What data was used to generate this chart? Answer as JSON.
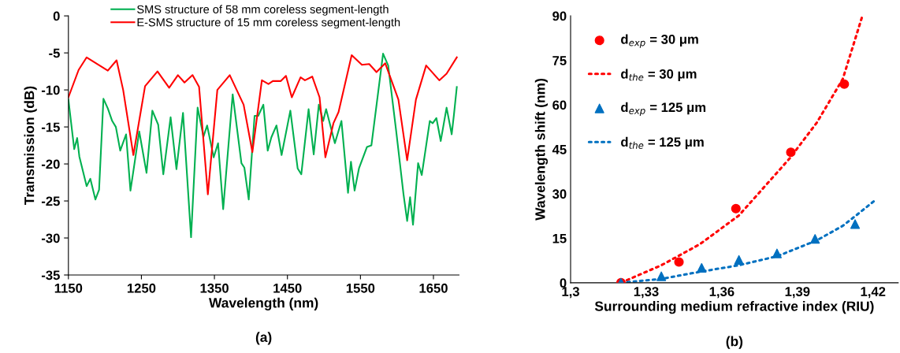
{
  "chart_data": [
    {
      "type": "line",
      "xlabel": "Wavelength (nm)",
      "ylabel": "Transmission (dB)",
      "xlim": [
        1150,
        1685
      ],
      "xticks": [
        1150,
        1250,
        1350,
        1450,
        1550,
        1650
      ],
      "ylim": [
        -35,
        0
      ],
      "yticks": [
        -35,
        -30,
        -25,
        -20,
        -15,
        -10,
        -5,
        0
      ],
      "grid": false,
      "legend": "top",
      "annotations": [
        "(a)"
      ],
      "series": [
        {
          "name": "SMS structure of 58 mm coreless segment-length",
          "color": "#00b050",
          "x": [
            1150,
            1155,
            1158,
            1162,
            1165,
            1170,
            1175,
            1180,
            1187,
            1192,
            1198,
            1204,
            1210,
            1215,
            1221,
            1229,
            1235,
            1240,
            1247,
            1257,
            1265,
            1273,
            1280,
            1290,
            1298,
            1307,
            1318,
            1327,
            1335,
            1340,
            1349,
            1355,
            1362,
            1375,
            1387,
            1391,
            1397,
            1405,
            1410,
            1417,
            1423,
            1428,
            1435,
            1442,
            1454,
            1464,
            1469,
            1479,
            1486,
            1493,
            1499,
            1503,
            1515,
            1524,
            1533,
            1537,
            1542,
            1548,
            1559,
            1565,
            1581,
            1588,
            1599,
            1609,
            1614,
            1618,
            1622,
            1629,
            1634,
            1645,
            1649,
            1654,
            1660,
            1668,
            1675,
            1678,
            1682
          ],
          "values": [
            -11.3,
            -15.5,
            -18,
            -16.5,
            -19,
            -21,
            -23,
            -22,
            -24.8,
            -23.5,
            -11.2,
            -12.5,
            -14.2,
            -15,
            -18.2,
            -16,
            -23.6,
            -20.3,
            -15.6,
            -21.2,
            -12.8,
            -14.7,
            -21.4,
            -13.7,
            -20.7,
            -13.1,
            -29.9,
            -12.4,
            -16.3,
            -14.8,
            -19.1,
            -17.2,
            -26.1,
            -10.6,
            -19.9,
            -20.5,
            -24.8,
            -13.5,
            -13.5,
            -12,
            -18.2,
            -16.4,
            -14.8,
            -18.8,
            -12.8,
            -20.6,
            -21.4,
            -12.6,
            -18.7,
            -12,
            -14.2,
            -12.6,
            -17.2,
            -14.2,
            -23.9,
            -19.7,
            -23.6,
            -20.6,
            -17.7,
            -17.5,
            -5.1,
            -6.7,
            -15.6,
            -24.1,
            -27.7,
            -24.5,
            -28.2,
            -19.9,
            -21.5,
            -14.2,
            -14.5,
            -13.8,
            -16.9,
            -12.4,
            -16,
            -13.4,
            -9.6
          ]
        },
        {
          "name": "E-SMS structure of 15 mm coreless segment-length",
          "color": "#ff0000",
          "x": [
            1150,
            1164,
            1175,
            1204,
            1216,
            1225,
            1239,
            1255,
            1272,
            1288,
            1300,
            1309,
            1320,
            1329,
            1341,
            1354,
            1371,
            1390,
            1402,
            1415,
            1424,
            1430,
            1441,
            1448,
            1456,
            1468,
            1474,
            1484,
            1494,
            1502,
            1513,
            1520,
            1538,
            1552,
            1562,
            1572,
            1584,
            1602,
            1614,
            1626,
            1640,
            1658,
            1668,
            1682
          ],
          "values": [
            -11,
            -7.3,
            -5.6,
            -7.4,
            -6,
            -10,
            -18.8,
            -9.5,
            -7.5,
            -9.7,
            -8,
            -9,
            -8,
            -9.6,
            -24.1,
            -10,
            -8,
            -12,
            -18.4,
            -8.7,
            -9.2,
            -8.8,
            -8.8,
            -8.1,
            -11,
            -8.3,
            -8.7,
            -8.2,
            -11,
            -19.1,
            -14.5,
            -13,
            -5.3,
            -6.6,
            -6.5,
            -7.6,
            -6.4,
            -11.3,
            -19.5,
            -11.3,
            -6.7,
            -8.7,
            -7.8,
            -5.6
          ]
        }
      ]
    },
    {
      "type": "scatter",
      "xlabel": "Surrounding medium refractive index (RIU)",
      "ylabel": "Wavelength shift (nm)",
      "xlim": [
        1.3,
        1.43
      ],
      "xticks": [
        {
          "value": 1.3,
          "label": "1,3"
        },
        {
          "value": 1.33,
          "label": "1,33"
        },
        {
          "value": 1.36,
          "label": "1,36"
        },
        {
          "value": 1.39,
          "label": "1,39"
        },
        {
          "value": 1.42,
          "label": "1,42"
        }
      ],
      "ylim": [
        0,
        90
      ],
      "yticks": [
        0,
        15,
        30,
        45,
        60,
        75,
        90
      ],
      "grid": false,
      "legend": "top left",
      "annotations": [
        "(b)"
      ],
      "series": [
        {
          "name": "d$_{exp}$ = 30 μm",
          "type": "scatter",
          "marker": "circle",
          "color": "#ff0000",
          "x": [
            1.32,
            1.343,
            1.3656,
            1.3874,
            1.4086
          ],
          "values": [
            0,
            7,
            25,
            44,
            67
          ]
        },
        {
          "name": "d$_{the}$ = 30 μm",
          "type": "line",
          "line_style": "dotted",
          "marker": "none",
          "color": "#ff0000",
          "x": [
            1.32,
            1.336,
            1.3513,
            1.3668,
            1.387,
            1.3977,
            1.408,
            1.4156
          ],
          "values": [
            0,
            5.9,
            13,
            22.7,
            42,
            54,
            68.7,
            89.5
          ]
        },
        {
          "name": "d$_{exp}$ = 125 μm",
          "type": "scatter",
          "marker": "triangle",
          "color": "#0070c0",
          "x": [
            1.32,
            1.336,
            1.352,
            1.3668,
            1.3819,
            1.397,
            1.4129
          ],
          "values": [
            0,
            2.2,
            5,
            7.7,
            9.9,
            14.8,
            19.8
          ]
        },
        {
          "name": "d$_{the}$ = 125 μm",
          "type": "line",
          "line_style": "dotted",
          "marker": "none",
          "color": "#0070c0",
          "x": [
            1.32,
            1.336,
            1.3513,
            1.3668,
            1.3822,
            1.3977,
            1.408,
            1.4133,
            1.4205
          ],
          "values": [
            0,
            1.3,
            3.7,
            5.9,
            9,
            14.3,
            19.2,
            22.7,
            27.6
          ]
        }
      ]
    }
  ]
}
